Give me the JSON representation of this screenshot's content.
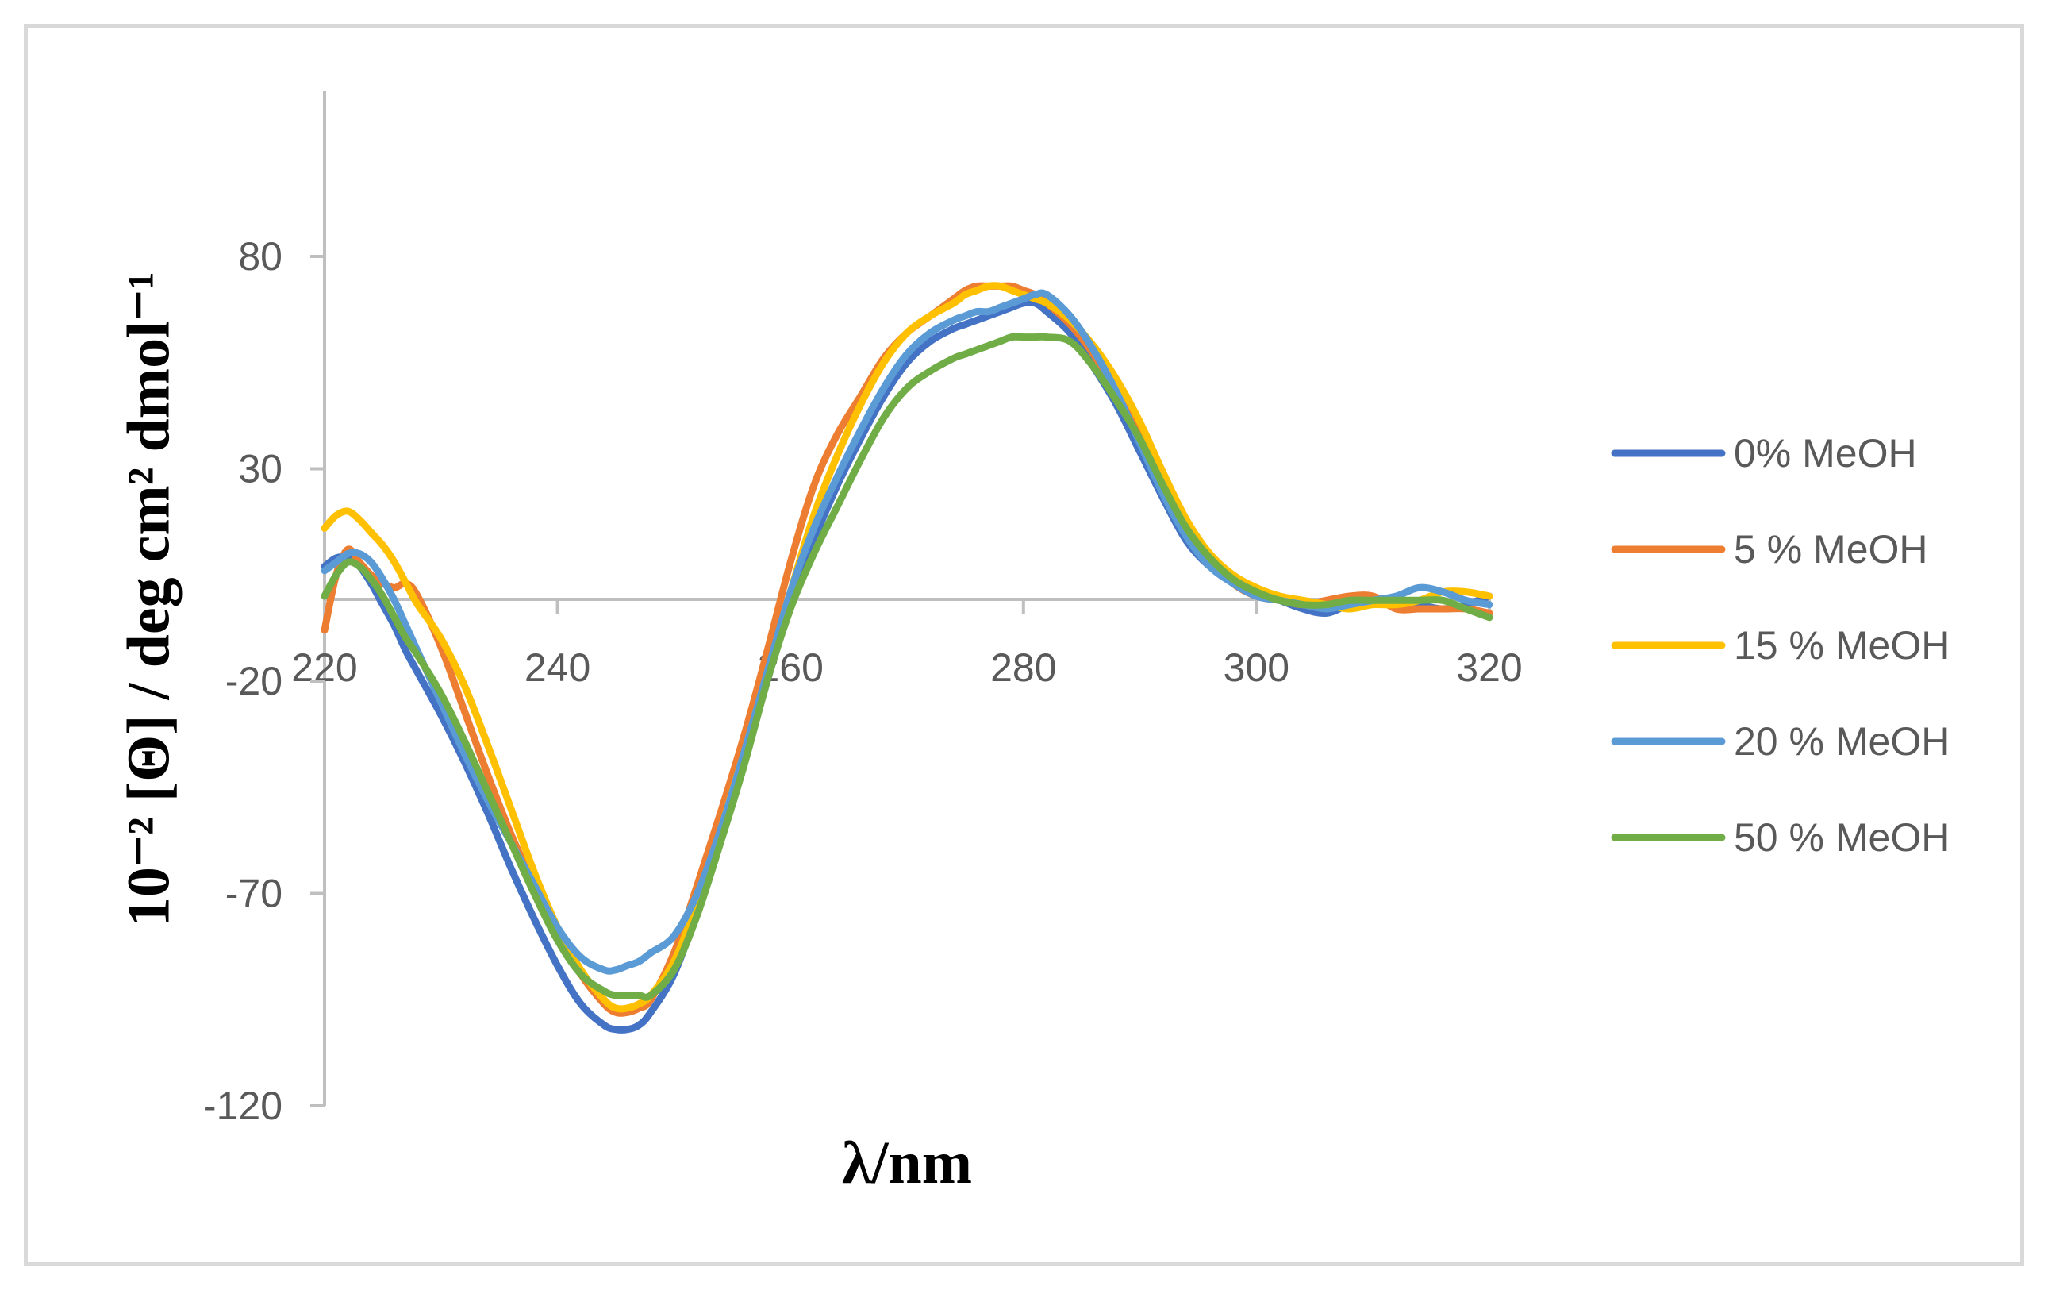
{
  "chart_data": {
    "type": "line",
    "title": "",
    "xlabel": "λ/nm",
    "ylabel": "10⁻² [Θ] / deg cm² dmol⁻¹",
    "xlim": [
      220,
      320
    ],
    "ylim": [
      -120,
      120
    ],
    "x_ticks": [
      220,
      240,
      260,
      280,
      300,
      320
    ],
    "y_ticks": [
      80,
      30,
      -20,
      -70,
      -120
    ],
    "legend_position": "right",
    "x": [
      220,
      221,
      222,
      223,
      224,
      225,
      226,
      227,
      228,
      230,
      232,
      234,
      236,
      238,
      240,
      242,
      244,
      245,
      246,
      247,
      248,
      250,
      252,
      254,
      256,
      258,
      260,
      262,
      264,
      266,
      268,
      270,
      272,
      274,
      275,
      276,
      277,
      278,
      279,
      280,
      281,
      282,
      284,
      286,
      288,
      290,
      292,
      294,
      296,
      298,
      300,
      302,
      304,
      306,
      308,
      310,
      312,
      314,
      316,
      318,
      320
    ],
    "series": [
      {
        "name": "0% MeOH",
        "color": "#4472c4",
        "values": [
          7,
          9,
          9,
          7,
          3,
          -2,
          -7,
          -13,
          -18,
          -28,
          -39,
          -51,
          -64,
          -76,
          -87,
          -96,
          -101,
          -102,
          -102,
          -101,
          -98,
          -89,
          -74,
          -57,
          -39,
          -20,
          -2,
          13,
          26,
          37,
          47,
          55,
          60,
          63,
          64,
          65,
          66,
          67,
          68,
          69,
          69,
          67,
          62,
          54,
          45,
          34,
          23,
          13,
          7,
          4,
          1,
          -1,
          -3,
          -4,
          -2,
          -1,
          -1,
          -2,
          -3,
          -2,
          0
        ]
      },
      {
        "name": "5 % MeOH",
        "color": "#ed7d31",
        "values": [
          -8,
          5,
          11,
          8,
          5,
          3,
          2,
          3,
          0,
          -12,
          -27,
          -42,
          -56,
          -68,
          -79,
          -89,
          -96,
          -98,
          -98,
          -97,
          -95,
          -84,
          -68,
          -51,
          -33,
          -13,
          8,
          26,
          38,
          47,
          56,
          62,
          66,
          70,
          72,
          73,
          73,
          73,
          73,
          72,
          71,
          69,
          64,
          57,
          48,
          38,
          28,
          17,
          9,
          3,
          0,
          -1,
          -2,
          -1,
          0,
          0,
          -3,
          -3,
          -3,
          -3,
          -4
        ]
      },
      {
        "name": "15 % MeOH",
        "color": "#ffc000",
        "values": [
          16,
          19,
          20,
          18,
          15,
          12,
          8,
          3,
          -2,
          -10,
          -21,
          -35,
          -50,
          -65,
          -78,
          -88,
          -95,
          -97,
          -97,
          -96,
          -94,
          -86,
          -72,
          -55,
          -37,
          -18,
          1,
          19,
          33,
          45,
          55,
          62,
          66,
          69,
          71,
          72,
          73,
          73,
          72,
          71,
          70,
          69,
          65,
          59,
          51,
          41,
          29,
          18,
          10,
          5,
          2,
          0,
          -1,
          -2,
          -3,
          -2,
          -2,
          -1,
          1,
          1,
          0
        ]
      },
      {
        "name": "20 % MeOH",
        "color": "#5b9bd5",
        "values": [
          6,
          8,
          10,
          10,
          8,
          4,
          -1,
          -7,
          -13,
          -25,
          -37,
          -48,
          -58,
          -68,
          -78,
          -85,
          -88,
          -88,
          -87,
          -86,
          -84,
          -80,
          -70,
          -55,
          -37,
          -18,
          1,
          16,
          28,
          39,
          49,
          57,
          62,
          65,
          66,
          67,
          67,
          68,
          69,
          70,
          71,
          71,
          66,
          58,
          48,
          36,
          24,
          14,
          7,
          3,
          0,
          -1,
          -2,
          -3,
          -2,
          -1,
          0,
          2,
          1,
          -1,
          -2
        ]
      },
      {
        "name": "50 % MeOH",
        "color": "#70ad47",
        "values": [
          0,
          5,
          8,
          7,
          4,
          0,
          -5,
          -10,
          -14,
          -23,
          -34,
          -46,
          -58,
          -70,
          -81,
          -89,
          -93,
          -94,
          -94,
          -94,
          -94,
          -88,
          -75,
          -58,
          -40,
          -20,
          -3,
          10,
          21,
          32,
          42,
          49,
          53,
          56,
          57,
          58,
          59,
          60,
          61,
          61,
          61,
          61,
          60,
          54,
          46,
          37,
          26,
          16,
          9,
          4,
          1,
          -1,
          -2,
          -2,
          -1,
          -1,
          -1,
          -1,
          -1,
          -3,
          -5
        ]
      }
    ]
  }
}
